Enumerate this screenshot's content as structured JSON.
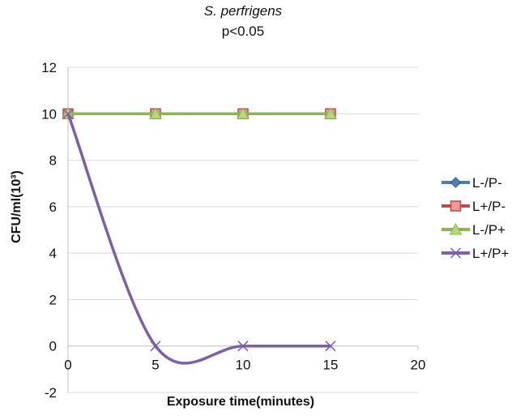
{
  "chart_data": {
    "type": "line",
    "title": "S. perfrigens",
    "subtitle": "p<0.05",
    "xlabel": "Exposure time(minutes)",
    "ylabel": "CFU/ml(10³)",
    "xlim": [
      0,
      20
    ],
    "ylim": [
      -2,
      12
    ],
    "x_ticks": [
      "0",
      "5",
      "10",
      "15",
      "20"
    ],
    "y_ticks": [
      "-2",
      "0",
      "2",
      "4",
      "6",
      "8",
      "10",
      "12"
    ],
    "grid": "horizontal",
    "legend_position": "right",
    "smooth": true,
    "series": [
      {
        "name": "L-/P-",
        "color": "#4a7ebb",
        "marker": "diamond",
        "x": [
          0,
          5,
          10,
          15
        ],
        "y": [
          10,
          10,
          10,
          10
        ]
      },
      {
        "name": "L+/P-",
        "color": "#be4b48",
        "marker": "square",
        "x": [
          0,
          5,
          10,
          15
        ],
        "y": [
          10,
          10,
          10,
          10
        ]
      },
      {
        "name": "L-/P+",
        "color": "#8cb54a",
        "marker": "triangle",
        "x": [
          0,
          5,
          10,
          15
        ],
        "y": [
          10,
          10,
          10,
          10
        ]
      },
      {
        "name": "L+/P+",
        "color": "#7d5fa8",
        "marker": "x",
        "x": [
          0,
          5,
          10,
          15
        ],
        "y": [
          10,
          0,
          0,
          0
        ]
      }
    ]
  }
}
